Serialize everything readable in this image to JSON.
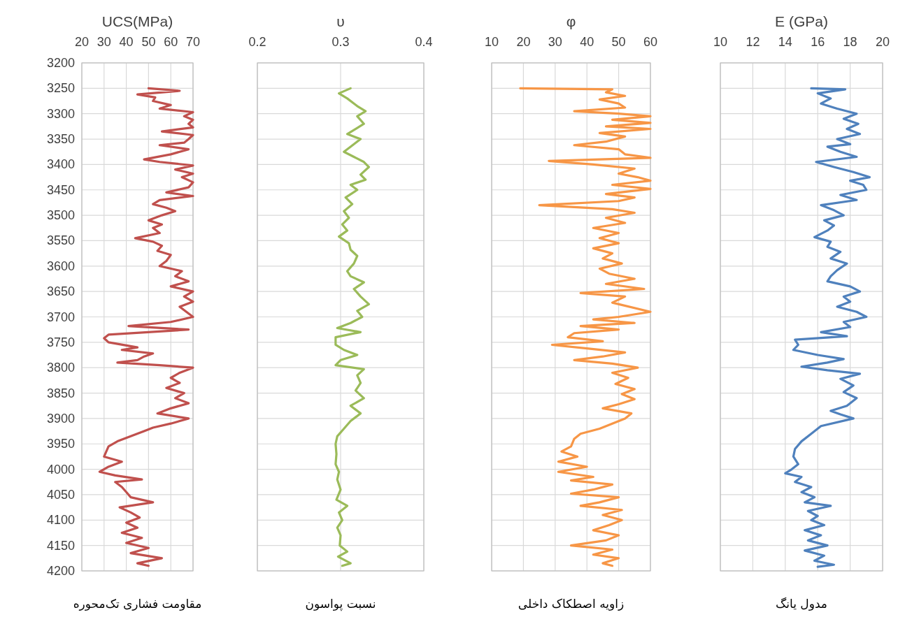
{
  "chart_data": [
    {
      "type": "line",
      "xlabel": "UCS(MPa)",
      "title": "مقاومت فشاری تک‌محوره",
      "xlim": [
        20,
        70
      ],
      "xticks": [
        20,
        30,
        40,
        50,
        60,
        70
      ],
      "ylim": [
        4200,
        3200
      ],
      "yticks": [
        3200,
        3250,
        3300,
        3350,
        3400,
        3450,
        3500,
        3550,
        3600,
        3650,
        3700,
        3750,
        3800,
        3850,
        3900,
        3950,
        4000,
        4050,
        4100,
        4150,
        4200
      ],
      "grid": true,
      "series": [
        {
          "color": "#c0504d",
          "x": [
            50,
            64,
            45,
            53,
            52,
            60,
            55,
            70,
            66,
            70,
            68,
            70,
            56,
            70,
            68,
            66,
            55,
            68,
            60,
            48,
            55,
            70,
            62,
            70,
            65,
            70,
            68,
            58,
            70,
            55,
            52,
            58,
            62,
            56,
            50,
            56,
            52,
            55,
            44,
            52,
            56,
            54,
            60,
            58,
            55,
            65,
            62,
            68,
            60,
            70,
            66,
            70,
            64,
            70,
            60,
            41,
            68,
            32,
            30,
            32,
            45,
            38,
            52,
            48,
            45,
            36,
            55,
            70,
            64,
            60,
            64,
            58,
            66,
            62,
            68,
            60,
            54,
            68,
            60,
            52,
            48,
            42,
            36,
            32,
            31,
            30,
            38,
            32,
            28,
            35,
            47,
            35,
            38,
            40,
            42,
            52,
            37,
            42,
            46,
            40,
            45,
            38,
            47,
            40,
            50,
            42,
            56,
            45,
            50
          ],
          "values": [
            3250,
            3255,
            3262,
            3268,
            3275,
            3283,
            3290,
            3297,
            3305,
            3312,
            3320,
            3327,
            3335,
            3342,
            3350,
            3357,
            3362,
            3370,
            3380,
            3390,
            3395,
            3402,
            3410,
            3418,
            3425,
            3435,
            3445,
            3455,
            3462,
            3470,
            3478,
            3485,
            3492,
            3500,
            3510,
            3518,
            3525,
            3535,
            3545,
            3552,
            3560,
            3570,
            3578,
            3590,
            3600,
            3610,
            3620,
            3630,
            3640,
            3650,
            3660,
            3670,
            3680,
            3700,
            3710,
            3718,
            3725,
            3735,
            3742,
            3750,
            3760,
            3765,
            3772,
            3778,
            3785,
            3790,
            3795,
            3800,
            3810,
            3820,
            3830,
            3840,
            3850,
            3860,
            3870,
            3880,
            3890,
            3900,
            3910,
            3918,
            3925,
            3935,
            3945,
            3955,
            3965,
            3975,
            3985,
            3995,
            4005,
            4012,
            4020,
            4025,
            4035,
            4045,
            4055,
            4065,
            4075,
            4085,
            4095,
            4105,
            4115,
            4125,
            4135,
            4145,
            4155,
            4165,
            4175,
            4185,
            4190
          ]
        }
      ]
    },
    {
      "type": "line",
      "xlabel": "υ",
      "title": "نسبت پواسون",
      "xlim": [
        0.2,
        0.4
      ],
      "xticks": [
        0.2,
        0.3,
        0.4
      ],
      "ylim": [
        4200,
        3200
      ],
      "yticks": [
        3200,
        3250,
        3300,
        3350,
        3400,
        3450,
        3500,
        3550,
        3600,
        3650,
        3700,
        3750,
        3800,
        3850,
        3900,
        3950,
        4000,
        4050,
        4100,
        4150,
        4200
      ],
      "grid": true,
      "tick_labels": "x",
      "series": [
        {
          "color": "#9bbb59",
          "x": [
            0.312,
            0.298,
            0.308,
            0.32,
            0.33,
            0.32,
            0.328,
            0.308,
            0.324,
            0.312,
            0.304,
            0.316,
            0.328,
            0.334,
            0.324,
            0.33,
            0.312,
            0.32,
            0.306,
            0.314,
            0.304,
            0.31,
            0.302,
            0.308,
            0.298,
            0.31,
            0.312,
            0.32,
            0.316,
            0.308,
            0.312,
            0.328,
            0.316,
            0.324,
            0.334,
            0.32,
            0.326,
            0.312,
            0.296,
            0.324,
            0.294,
            0.294,
            0.304,
            0.32,
            0.3,
            0.294,
            0.328,
            0.32,
            0.324,
            0.318,
            0.328,
            0.312,
            0.324,
            0.312,
            0.304,
            0.296,
            0.294,
            0.295,
            0.294,
            0.298,
            0.296,
            0.3,
            0.295,
            0.308,
            0.298,
            0.302,
            0.296,
            0.3,
            0.299,
            0.308,
            0.297,
            0.312,
            0.302
          ],
          "values": [
            3250,
            3260,
            3270,
            3285,
            3295,
            3305,
            3320,
            3340,
            3350,
            3365,
            3375,
            3385,
            3395,
            3405,
            3420,
            3430,
            3440,
            3450,
            3465,
            3478,
            3492,
            3505,
            3518,
            3530,
            3542,
            3555,
            3568,
            3580,
            3595,
            3610,
            3620,
            3632,
            3645,
            3660,
            3675,
            3688,
            3700,
            3712,
            3722,
            3730,
            3740,
            3755,
            3765,
            3775,
            3785,
            3795,
            3803,
            3815,
            3830,
            3845,
            3860,
            3875,
            3890,
            3905,
            3920,
            3935,
            3950,
            3970,
            3990,
            4005,
            4020,
            4040,
            4060,
            4072,
            4085,
            4100,
            4115,
            4130,
            4150,
            4162,
            4172,
            4185,
            4190
          ]
        }
      ]
    },
    {
      "type": "line",
      "xlabel": "φ",
      "title": "زاویه اصطکاک داخلی",
      "xlim": [
        10,
        60
      ],
      "xticks": [
        10,
        20,
        30,
        40,
        50,
        60
      ],
      "ylim": [
        4200,
        3200
      ],
      "yticks": [
        3200,
        3250,
        3300,
        3350,
        3400,
        3450,
        3500,
        3550,
        3600,
        3650,
        3700,
        3750,
        3800,
        3850,
        3900,
        3950,
        4000,
        4050,
        4100,
        4150,
        4200
      ],
      "grid": true,
      "tick_labels": "x",
      "series": [
        {
          "color": "#f79646",
          "x": [
            19,
            48,
            46,
            52,
            44,
            50,
            52,
            36,
            50,
            60,
            48,
            60,
            46,
            60,
            44,
            52,
            46,
            36,
            50,
            52,
            60,
            28,
            42,
            55,
            50,
            56,
            60,
            48,
            60,
            46,
            55,
            50,
            25,
            48,
            55,
            46,
            52,
            42,
            50,
            44,
            50,
            42,
            48,
            45,
            51,
            44,
            47,
            55,
            46,
            58,
            38,
            52,
            48,
            60,
            50,
            42,
            55,
            38,
            50,
            36,
            34,
            45,
            29,
            40,
            52,
            45,
            36,
            48,
            56,
            48,
            53,
            49,
            55,
            51,
            55,
            50,
            45,
            54,
            52,
            48,
            44,
            38,
            36,
            35,
            32,
            37,
            31,
            40,
            31,
            42,
            35,
            48,
            42,
            35,
            50,
            44,
            38,
            51,
            45,
            51,
            47,
            42,
            50,
            46,
            35,
            48,
            42,
            50,
            45,
            48
          ],
          "values": [
            3250,
            3252,
            3258,
            3265,
            3272,
            3280,
            3288,
            3295,
            3300,
            3305,
            3312,
            3318,
            3325,
            3330,
            3338,
            3345,
            3355,
            3362,
            3370,
            3380,
            3387,
            3393,
            3400,
            3408,
            3418,
            3425,
            3432,
            3440,
            3448,
            3458,
            3465,
            3472,
            3480,
            3488,
            3495,
            3505,
            3515,
            3525,
            3535,
            3545,
            3555,
            3565,
            3575,
            3585,
            3595,
            3605,
            3615,
            3625,
            3635,
            3645,
            3653,
            3660,
            3672,
            3690,
            3700,
            3705,
            3712,
            3718,
            3725,
            3732,
            3740,
            3748,
            3755,
            3762,
            3770,
            3778,
            3785,
            3792,
            3800,
            3810,
            3820,
            3832,
            3842,
            3852,
            3862,
            3872,
            3880,
            3890,
            3900,
            3910,
            3920,
            3930,
            3940,
            3955,
            3965,
            3975,
            3985,
            3995,
            4005,
            4015,
            4022,
            4030,
            4040,
            4048,
            4055,
            4065,
            4072,
            4080,
            4090,
            4100,
            4110,
            4120,
            4130,
            4140,
            4150,
            4158,
            4168,
            4175,
            4185,
            4190
          ]
        }
      ]
    },
    {
      "type": "line",
      "xlabel": "E (GPa)",
      "title": "مدول یانگ",
      "xlim": [
        10,
        20
      ],
      "xticks": [
        10,
        12,
        14,
        16,
        18,
        20
      ],
      "ylim": [
        4200,
        3200
      ],
      "yticks": [
        3200,
        3250,
        3300,
        3350,
        3400,
        3450,
        3500,
        3550,
        3600,
        3650,
        3700,
        3750,
        3800,
        3850,
        3900,
        3950,
        4000,
        4050,
        4100,
        4150,
        4200
      ],
      "grid": true,
      "tick_labels": "x",
      "series": [
        {
          "color": "#4f81bd",
          "x": [
            15.6,
            17.7,
            16.0,
            16.8,
            16.2,
            17.2,
            18.4,
            17.6,
            18.5,
            17.8,
            18.6,
            17.2,
            18.0,
            16.6,
            17.4,
            18.4,
            15.9,
            17.0,
            18.2,
            19.2,
            18.0,
            18.8,
            19.0,
            17.4,
            18.4,
            16.2,
            17.0,
            17.6,
            16.4,
            17.0,
            16.6,
            15.8,
            16.8,
            16.6,
            17.4,
            16.8,
            17.8,
            17.2,
            16.8,
            16.6,
            18.0,
            18.6,
            17.6,
            18.0,
            17.2,
            18.4,
            19.0,
            17.6,
            18.0,
            16.2,
            17.8,
            14.6,
            14.8,
            14.5,
            16.0,
            17.6,
            16.6,
            15.0,
            16.6,
            18.6,
            17.4,
            18.2,
            17.6,
            18.4,
            17.8,
            16.8,
            17.4,
            18.2,
            16.2,
            15.6,
            15.0,
            14.6,
            14.5,
            14.8,
            14.4,
            14.0,
            15.0,
            14.6,
            15.6,
            15.0,
            15.8,
            15.2,
            16.8,
            15.4,
            16.0,
            15.6,
            16.4,
            15.2,
            16.2,
            15.4,
            16.6,
            15.2,
            16.4,
            15.8,
            17.0,
            16.0
          ],
          "values": [
            3250,
            3252,
            3260,
            3270,
            3280,
            3290,
            3300,
            3310,
            3320,
            3330,
            3340,
            3350,
            3360,
            3365,
            3375,
            3385,
            3395,
            3405,
            3415,
            3425,
            3432,
            3440,
            3450,
            3460,
            3470,
            3480,
            3490,
            3500,
            3510,
            3520,
            3530,
            3543,
            3552,
            3562,
            3572,
            3585,
            3595,
            3608,
            3620,
            3630,
            3640,
            3650,
            3660,
            3670,
            3680,
            3690,
            3700,
            3710,
            3720,
            3730,
            3738,
            3745,
            3755,
            3765,
            3775,
            3783,
            3790,
            3798,
            3805,
            3812,
            3822,
            3835,
            3848,
            3860,
            3875,
            3885,
            3892,
            3900,
            3915,
            3930,
            3945,
            3960,
            3975,
            3990,
            4000,
            4008,
            4015,
            4025,
            4035,
            4045,
            4055,
            4065,
            4072,
            4082,
            4092,
            4100,
            4110,
            4120,
            4130,
            4140,
            4150,
            4160,
            4170,
            4180,
            4188,
            4192
          ]
        }
      ]
    }
  ]
}
